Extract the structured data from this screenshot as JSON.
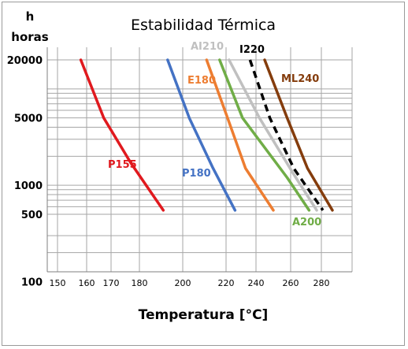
{
  "chart_data": {
    "type": "line",
    "title": "Estabilidad Térmica",
    "xlabel": "Temperatura [°C]",
    "ylabel": "h",
    "ylabel_sub": "horas",
    "x_ticks": [
      "150",
      "160",
      "170",
      "180",
      "200",
      "220",
      "240",
      "260",
      "280"
    ],
    "y_ticks": [
      "20000",
      "5000",
      "1000",
      "500",
      "100"
    ],
    "series": [
      {
        "name": "P155",
        "color": "#e0191e",
        "dashed": false,
        "x": [
          158,
          167,
          177,
          191
        ],
        "y": [
          20000,
          5000,
          1700,
          550
        ]
      },
      {
        "name": "P180",
        "color": "#4472c4",
        "dashed": false,
        "x": [
          193,
          203,
          214,
          226
        ],
        "y": [
          20000,
          5000,
          1500,
          550
        ]
      },
      {
        "name": "E180",
        "color": "#ed7d31",
        "dashed": false,
        "x": [
          211,
          221,
          233,
          250
        ],
        "y": [
          20000,
          5000,
          1500,
          550
        ]
      },
      {
        "name": "AI210",
        "color": "#c0c0c0",
        "dashed": false,
        "x": [
          222,
          242,
          262,
          277
        ],
        "y": [
          20000,
          5000,
          1300,
          550
        ]
      },
      {
        "name": "A200",
        "color": "#70ad47",
        "dashed": false,
        "x": [
          217,
          231,
          258,
          272
        ],
        "y": [
          20000,
          5000,
          1200,
          550
        ]
      },
      {
        "name": "I220",
        "color": "#000000",
        "dashed": true,
        "x": [
          236,
          248,
          262,
          281
        ],
        "y": [
          20000,
          5000,
          1500,
          550
        ]
      },
      {
        "name": "ML240",
        "color": "#843c0c",
        "dashed": false,
        "x": [
          245,
          258,
          271,
          287
        ],
        "y": [
          20000,
          5000,
          1500,
          550
        ]
      }
    ]
  }
}
